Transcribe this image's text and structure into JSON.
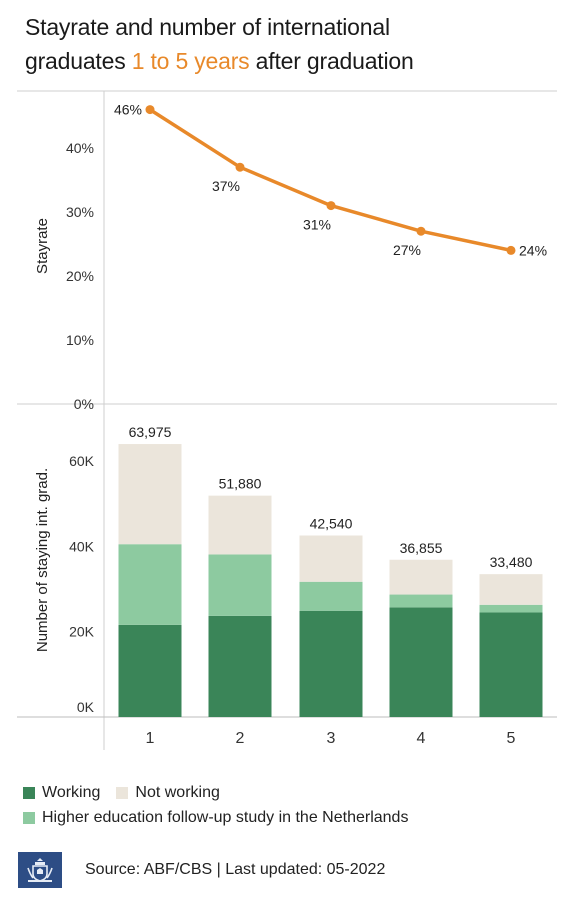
{
  "title": {
    "line1": "Stayrate and number of international",
    "line2_before": "graduates ",
    "line2_highlight": "1 to 5 years",
    "line2_after": " after graduation"
  },
  "colors": {
    "stayrate": "#e8892a",
    "working": "#3a8558",
    "followup": "#8dcaa0",
    "not_working": "#ebe5db",
    "highlight": "#e8892a"
  },
  "chart_data": [
    {
      "type": "line",
      "name": "Stayrate",
      "ylabel": "Stayrate",
      "x": [
        1,
        2,
        3,
        4,
        5
      ],
      "values": [
        46,
        37,
        31,
        27,
        24
      ],
      "value_labels": [
        "46%",
        "37%",
        "31%",
        "27%",
        "24%"
      ],
      "ylim": [
        0,
        50
      ],
      "yticks": [
        0,
        10,
        20,
        30,
        40
      ],
      "ytick_labels": [
        "0%",
        "10%",
        "20%",
        "30%",
        "40%"
      ]
    },
    {
      "type": "bar",
      "stacked": true,
      "ylabel": "Number of staying int. grad.",
      "categories": [
        "1",
        "2",
        "3",
        "4",
        "5"
      ],
      "series": [
        {
          "name": "Working",
          "values": [
            21600,
            23700,
            24900,
            25700,
            24500
          ]
        },
        {
          "name": "Higher education follow-up study in the Netherlands",
          "values": [
            18900,
            14400,
            6800,
            3000,
            1800
          ]
        },
        {
          "name": "Not working",
          "values": [
            23475,
            13780,
            10840,
            8155,
            7180
          ]
        }
      ],
      "totals": [
        63975,
        51880,
        42540,
        36855,
        33480
      ],
      "total_labels": [
        "63,975",
        "51,880",
        "42,540",
        "36,855",
        "33,480"
      ],
      "ylim": [
        0,
        70000
      ],
      "yticks": [
        0,
        20000,
        40000,
        60000
      ],
      "ytick_labels": [
        "0K",
        "20K",
        "40K",
        "60K"
      ]
    }
  ],
  "legend": {
    "working": "Working",
    "not_working": "Not working",
    "followup": "Higher education follow-up study in the Netherlands"
  },
  "footer": {
    "source": "Source: ABF/CBS | Last updated: 05-2022",
    "logo_icon": "government-crest-icon"
  }
}
